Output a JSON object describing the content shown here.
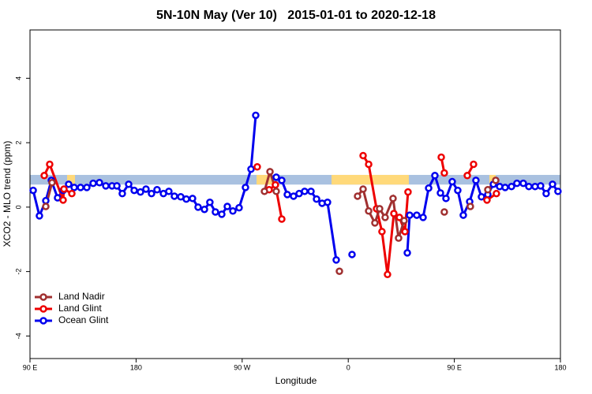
{
  "chart_data": {
    "type": "line",
    "title": "5N-10N May (Ver 10)   2015-01-01 to 2020-12-18",
    "x_label": "Longitude",
    "y_label": "XCO2 - MLO trend (ppm)",
    "xlim": [
      90,
      540
    ],
    "ylim": [
      -4.7,
      5.5
    ],
    "xticks": [
      {
        "value": 90,
        "label": "90 E"
      },
      {
        "value": 180,
        "label": "180"
      },
      {
        "value": 270,
        "label": "90 W"
      },
      {
        "value": 360,
        "label": "0"
      },
      {
        "value": 450,
        "label": "90 E"
      },
      {
        "value": 540,
        "label": "180"
      }
    ],
    "yticks": [
      -4,
      -2,
      0,
      2,
      4
    ],
    "legend": "bottom-left",
    "reference_band": {
      "ylim": [
        0.7,
        1.0
      ],
      "color": "#a9c1e0"
    },
    "land_bands": {
      "color": "#ffd97a",
      "xranges": [
        [
          121.5,
          128.2
        ],
        [
          282.2,
          295.6
        ],
        [
          345.8,
          411.4
        ],
        [
          479.7,
          485.1
        ]
      ]
    },
    "series": [
      {
        "name": "Land Nadir",
        "color": "#a03030",
        "x": [
          103.4,
          108.7,
          200,
          288.9,
          293.6,
          298.9,
          330,
          352.5,
          360,
          367.9,
          372.6,
          377.3,
          382.6,
          386.6,
          391.3,
          398.0,
          402.7,
          407.4,
          430,
          441.5,
          455,
          463.6,
          470,
          478.4,
          485.1
        ],
        "values": [
          0.02,
          0.76,
          null,
          0.49,
          1.1,
          0.49,
          null,
          -1.99,
          null,
          0.34,
          0.56,
          -0.12,
          -0.49,
          -0.05,
          -0.32,
          0.27,
          -0.96,
          -0.42,
          null,
          -0.15,
          null,
          0.02,
          null,
          0.54,
          0.83
        ]
      },
      {
        "name": "Land Glint",
        "color": "#ee0000",
        "x": [
          102.1,
          106.7,
          118.1,
          118.8,
          125.5,
          200,
          282.8,
          290,
          292.9,
          298.2,
          303.6,
          380,
          372.6,
          377.3,
          384.0,
          388.6,
          393.3,
          398.7,
          403.4,
          408.1,
          410.7,
          430,
          438.9,
          441.5,
          455,
          461.0,
          466.3,
          470,
          477.7,
          485.7
        ],
        "values": [
          0.98,
          1.33,
          0.22,
          0.56,
          0.42,
          null,
          1.25,
          null,
          0.54,
          0.69,
          -0.37,
          null,
          1.6,
          1.33,
          -0.05,
          -0.76,
          -2.09,
          -0.2,
          -0.32,
          -0.76,
          0.47,
          null,
          1.55,
          1.06,
          null,
          0.98,
          1.33,
          null,
          0.22,
          0.42
        ]
      },
      {
        "name": "Ocean Glint",
        "color": "#0000ee",
        "x": [
          92.7,
          98.0,
          103.4,
          108.1,
          113.4,
          118.1,
          122.8,
          127.5,
          132.9,
          138.2,
          143.6,
          148.9,
          154.3,
          159.6,
          163.7,
          168.3,
          173.7,
          178.4,
          183.7,
          188.4,
          193.1,
          197.8,
          203.2,
          207.8,
          212.5,
          217.9,
          222.6,
          227.9,
          232.6,
          238.0,
          242.6,
          247.3,
          252.7,
          257.4,
          262.1,
          267.4,
          272.8,
          277.5,
          281.5,
          290,
          298.9,
          303.6,
          308.3,
          313.6,
          318.3,
          323.0,
          328.4,
          333.1,
          337.8,
          342.4,
          349.8,
          352,
          363.2,
          370,
          410.1,
          412.1,
          418.1,
          423.5,
          428.2,
          433.5,
          438.2,
          442.9,
          448.2,
          452.9,
          457.6,
          463.0,
          468.3,
          473.0,
          478.4,
          483.1,
          488.4,
          493.1,
          498.5,
          503.1,
          508.5,
          513.2,
          518.5,
          523.2,
          527.9,
          533.3,
          537.9
        ],
        "values": [
          0.52,
          -0.27,
          0.2,
          0.83,
          0.29,
          0.52,
          0.71,
          0.61,
          0.61,
          0.61,
          0.74,
          0.76,
          0.66,
          0.66,
          0.66,
          0.42,
          0.71,
          0.52,
          0.47,
          0.56,
          0.42,
          0.54,
          0.42,
          0.49,
          0.34,
          0.32,
          0.25,
          0.27,
          0.0,
          -0.07,
          0.15,
          -0.15,
          -0.22,
          0.02,
          -0.12,
          -0.02,
          0.61,
          1.18,
          2.85,
          null,
          0.93,
          0.83,
          0.39,
          0.34,
          0.42,
          0.49,
          0.49,
          0.25,
          0.12,
          0.15,
          -1.64,
          null,
          -1.47,
          null,
          -1.42,
          -0.25,
          -0.25,
          -0.32,
          0.59,
          0.98,
          0.44,
          0.27,
          0.79,
          0.52,
          -0.25,
          0.17,
          0.83,
          0.32,
          0.39,
          0.71,
          0.64,
          0.61,
          0.64,
          0.74,
          0.74,
          0.64,
          0.64,
          0.66,
          0.42,
          0.71,
          0.49
        ]
      }
    ]
  }
}
